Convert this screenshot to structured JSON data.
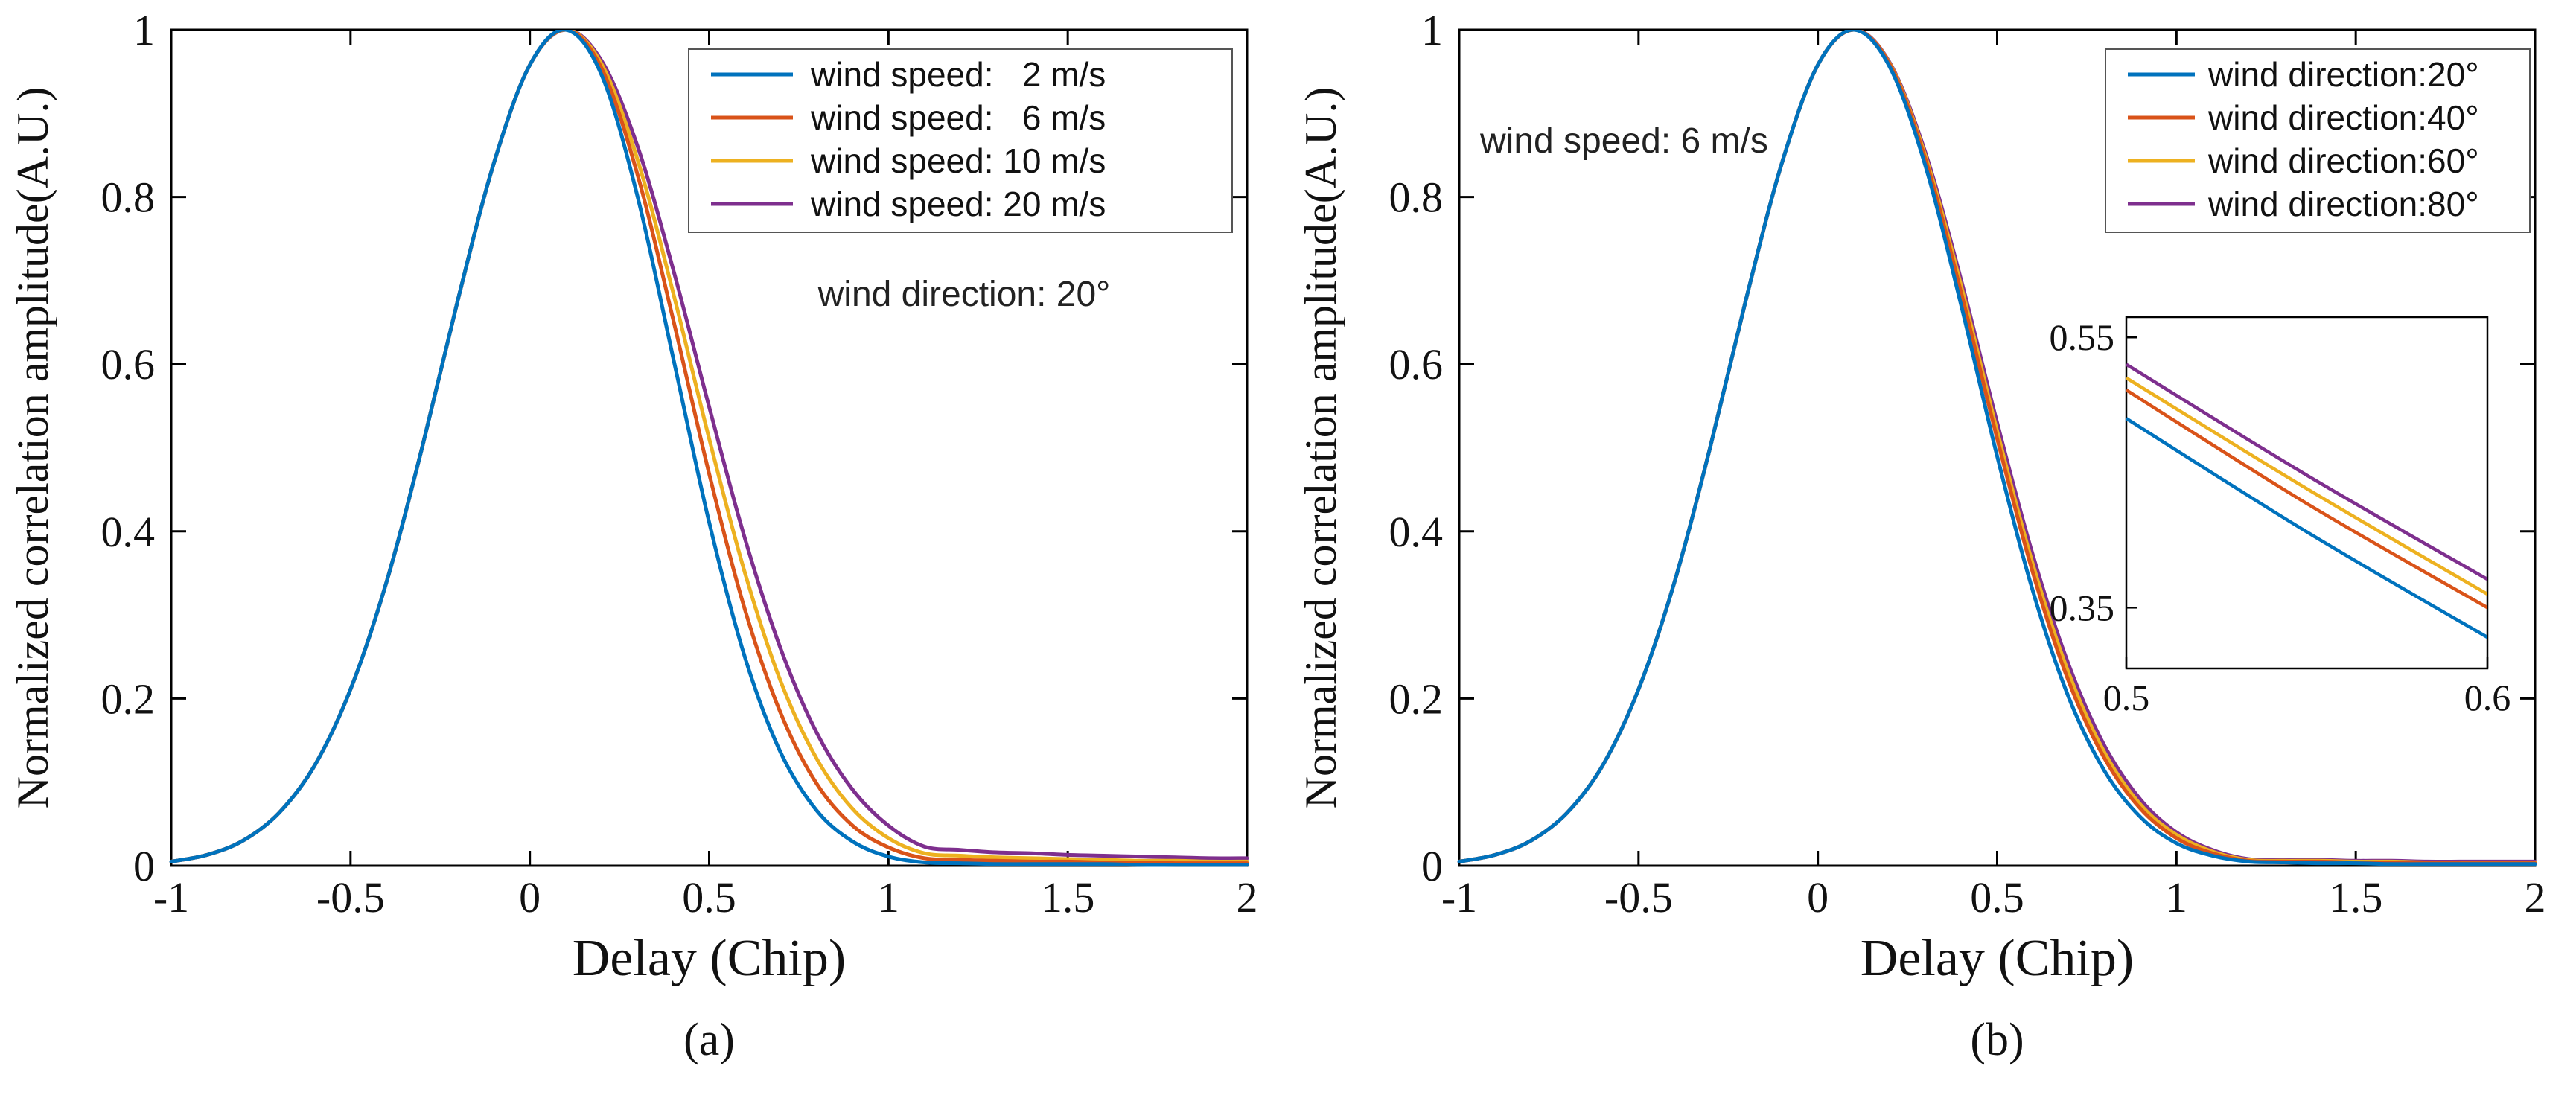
{
  "figure": {
    "background": "#ffffff",
    "axis_color": "#000000",
    "legend_border_color": "#555555"
  },
  "chart_data": [
    {
      "type": "line",
      "title": "",
      "xlabel": "Delay (Chip)",
      "ylabel": "Normalized correlation amplitude(A.U.)",
      "caption": "(a)",
      "annotation": "wind direction: 20°",
      "xlim": [
        -1,
        2
      ],
      "ylim": [
        0,
        1
      ],
      "xticks": [
        -1,
        -0.5,
        0,
        0.5,
        1,
        1.5,
        2
      ],
      "xtick_labels": [
        "-1",
        "-0.5",
        "0",
        "0.5",
        "1",
        "1.5",
        "2"
      ],
      "yticks": [
        0,
        0.2,
        0.4,
        0.6,
        0.8,
        1
      ],
      "ytick_labels": [
        "0",
        "0.2",
        "0.4",
        "0.6",
        "0.8",
        "1"
      ],
      "grid": false,
      "legend_position": "top-right",
      "x": [
        -1,
        -0.9,
        -0.8,
        -0.7,
        -0.6,
        -0.5,
        -0.4,
        -0.3,
        -0.2,
        -0.1,
        0,
        0.1,
        0.2,
        0.3,
        0.4,
        0.5,
        0.6,
        0.7,
        0.8,
        0.9,
        1,
        1.1,
        1.2,
        1.3,
        1.4,
        1.5,
        1.6,
        1.7,
        1.8,
        1.9,
        2
      ],
      "series": [
        {
          "name": "wind speed:   2 m/s",
          "color": "#0072BD",
          "values": [
            0.005,
            0.013,
            0.03,
            0.063,
            0.12,
            0.211,
            0.339,
            0.501,
            0.678,
            0.841,
            0.958,
            1,
            0.946,
            0.801,
            0.607,
            0.411,
            0.249,
            0.135,
            0.066,
            0.029,
            0.011,
            0.004,
            0.003,
            0.002,
            0.002,
            0.002,
            0.002,
            0.001,
            0.001,
            0.001,
            0.001
          ]
        },
        {
          "name": "wind speed:   6 m/s",
          "color": "#D95319",
          "values": [
            0.005,
            0.013,
            0.03,
            0.063,
            0.12,
            0.211,
            0.339,
            0.501,
            0.678,
            0.841,
            0.958,
            1,
            0.954,
            0.827,
            0.653,
            0.469,
            0.306,
            0.182,
            0.098,
            0.048,
            0.022,
            0.009,
            0.007,
            0.006,
            0.005,
            0.005,
            0.004,
            0.004,
            0.003,
            0.003,
            0.003
          ]
        },
        {
          "name": "wind speed: 10 m/s",
          "color": "#EDB120",
          "values": [
            0.005,
            0.013,
            0.03,
            0.063,
            0.12,
            0.211,
            0.339,
            0.501,
            0.678,
            0.841,
            0.958,
            1,
            0.959,
            0.845,
            0.685,
            0.511,
            0.35,
            0.22,
            0.128,
            0.068,
            0.033,
            0.015,
            0.012,
            0.01,
            0.009,
            0.008,
            0.007,
            0.006,
            0.006,
            0.005,
            0.005
          ]
        },
        {
          "name": "wind speed: 20 m/s",
          "color": "#7E2F8E",
          "values": [
            0.005,
            0.013,
            0.03,
            0.063,
            0.12,
            0.211,
            0.339,
            0.501,
            0.678,
            0.841,
            0.958,
            1,
            0.963,
            0.861,
            0.713,
            0.549,
            0.391,
            0.259,
            0.159,
            0.091,
            0.048,
            0.023,
            0.019,
            0.016,
            0.015,
            0.013,
            0.012,
            0.011,
            0.01,
            0.009,
            0.009
          ]
        }
      ]
    },
    {
      "type": "line",
      "title": "",
      "xlabel": "Delay (Chip)",
      "ylabel": "Normalized correlation amplitude(A.U.)",
      "caption": "(b)",
      "annotation": "wind speed: 6 m/s",
      "xlim": [
        -1,
        2
      ],
      "ylim": [
        0,
        1
      ],
      "xticks": [
        -1,
        -0.5,
        0,
        0.5,
        1,
        1.5,
        2
      ],
      "xtick_labels": [
        "-1",
        "-0.5",
        "0",
        "0.5",
        "1",
        "1.5",
        "2"
      ],
      "yticks": [
        0,
        0.2,
        0.4,
        0.6,
        0.8,
        1
      ],
      "ytick_labels": [
        "0",
        "0.2",
        "0.4",
        "0.6",
        "0.8",
        "1"
      ],
      "grid": false,
      "legend_position": "top-right",
      "x": [
        -1,
        -0.9,
        -0.8,
        -0.7,
        -0.6,
        -0.5,
        -0.4,
        -0.3,
        -0.2,
        -0.1,
        0,
        0.1,
        0.2,
        0.3,
        0.4,
        0.5,
        0.6,
        0.7,
        0.8,
        0.9,
        1,
        1.1,
        1.2,
        1.3,
        1.4,
        1.5,
        1.6,
        1.7,
        1.8,
        1.9,
        2
      ],
      "series": [
        {
          "name": "wind direction:20°",
          "color": "#0072BD",
          "values": [
            0.005,
            0.013,
            0.03,
            0.063,
            0.12,
            0.211,
            0.339,
            0.501,
            0.678,
            0.841,
            0.958,
            1,
            0.956,
            0.837,
            0.67,
            0.49,
            0.328,
            0.201,
            0.113,
            0.058,
            0.027,
            0.012,
            0.005,
            0.004,
            0.003,
            0.003,
            0.002,
            0.002,
            0.002,
            0.002,
            0.002
          ]
        },
        {
          "name": "wind direction:40°",
          "color": "#D95319",
          "values": [
            0.005,
            0.013,
            0.03,
            0.063,
            0.12,
            0.211,
            0.339,
            0.501,
            0.678,
            0.841,
            0.958,
            1,
            0.959,
            0.845,
            0.685,
            0.511,
            0.35,
            0.22,
            0.128,
            0.068,
            0.033,
            0.015,
            0.006,
            0.005,
            0.005,
            0.004,
            0.004,
            0.004,
            0.003,
            0.003,
            0.003
          ]
        },
        {
          "name": "wind direction:60°",
          "color": "#EDB120",
          "values": [
            0.005,
            0.013,
            0.03,
            0.063,
            0.12,
            0.211,
            0.339,
            0.501,
            0.678,
            0.841,
            0.958,
            1,
            0.96,
            0.849,
            0.693,
            0.52,
            0.36,
            0.23,
            0.135,
            0.073,
            0.037,
            0.017,
            0.007,
            0.006,
            0.006,
            0.005,
            0.005,
            0.004,
            0.004,
            0.004,
            0.004
          ]
        },
        {
          "name": "wind direction:80°",
          "color": "#7E2F8E",
          "values": [
            0.005,
            0.013,
            0.03,
            0.063,
            0.12,
            0.211,
            0.339,
            0.501,
            0.678,
            0.841,
            0.958,
            1,
            0.961,
            0.853,
            0.7,
            0.53,
            0.371,
            0.24,
            0.143,
            0.079,
            0.04,
            0.019,
            0.008,
            0.007,
            0.007,
            0.006,
            0.006,
            0.005,
            0.005,
            0.005,
            0.005
          ]
        }
      ],
      "inset": {
        "xlim": [
          0.5,
          0.6
        ],
        "ylim": [
          0.305,
          0.565
        ],
        "xticks": [
          0.5,
          0.6
        ],
        "xtick_labels": [
          "0.5",
          "0.6"
        ],
        "yticks": [
          0.55,
          0.35
        ],
        "ytick_labels": [
          "0.55",
          "0.35"
        ],
        "x": [
          0.5,
          0.55,
          0.6
        ],
        "series": [
          {
            "color": "#0072BD",
            "values": [
              0.49,
              0.406,
              0.328
            ]
          },
          {
            "color": "#D95319",
            "values": [
              0.511,
              0.427,
              0.35
            ]
          },
          {
            "color": "#EDB120",
            "values": [
              0.52,
              0.438,
              0.36
            ]
          },
          {
            "color": "#7E2F8E",
            "values": [
              0.53,
              0.448,
              0.371
            ]
          }
        ]
      }
    }
  ]
}
